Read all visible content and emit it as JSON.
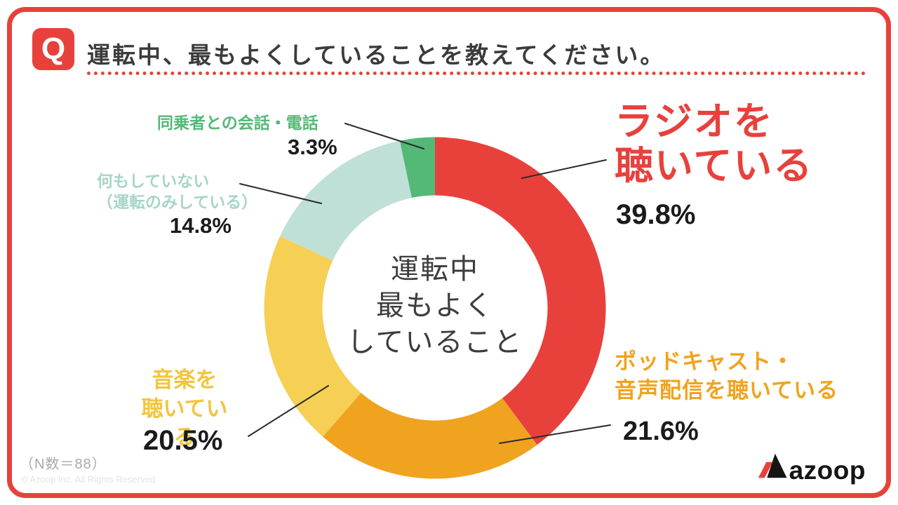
{
  "page": {
    "accent_color": "#e8413c"
  },
  "header": {
    "q_badge": "Q",
    "title": "運転中、最もよくしていることを教えてください。"
  },
  "chart_data": {
    "type": "donut",
    "center_label": "運転中\n最もよく\nしていること",
    "unit": "%",
    "start_angle_deg": 0,
    "direction": "clockwise",
    "total": 100,
    "segments": [
      {
        "label": "ラジオを聴いている",
        "value": 39.8,
        "color": "#e8413c"
      },
      {
        "label": "ポッドキャスト・音声配信を聴いている",
        "value": 21.6,
        "color": "#f0a31e"
      },
      {
        "label": "音楽を聴いている",
        "value": 20.5,
        "color": "#f6cf55"
      },
      {
        "label": "何もしていない（運転のみしている）",
        "value": 14.8,
        "color": "#bfe0d6"
      },
      {
        "label": "同乗者との会話・電話",
        "value": 3.3,
        "color": "#54b877"
      }
    ]
  },
  "callouts": {
    "radio": {
      "name": "ラジオを\n聴いている",
      "value": "39.8%",
      "color": "#e8413c"
    },
    "podcast": {
      "name": "ポッドキャスト・\n音声配信を聴いている",
      "value": "21.6%",
      "color": "#f0a31e"
    },
    "music": {
      "name": "音楽を\n聴いている",
      "value": "20.5%",
      "color": "#f2c53e"
    },
    "nothing": {
      "name": "何もしていない\n（運転のみしている）",
      "value": "14.8%",
      "color": "#a7d5c8"
    },
    "talk": {
      "name": "同乗者との会話・電話",
      "value": "3.3%",
      "color": "#54b877"
    }
  },
  "footer": {
    "n_note": "（N数＝88）",
    "copyright": "© Azoop Inc. All Rights Reserved",
    "logo_text": "azoop"
  }
}
